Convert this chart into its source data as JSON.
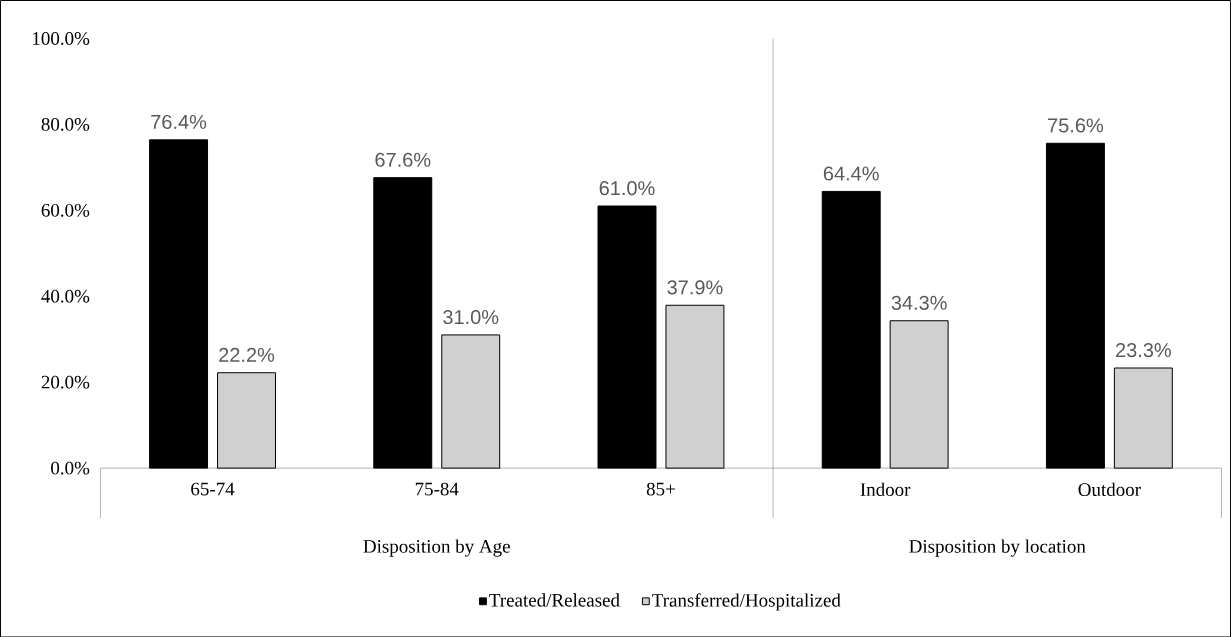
{
  "chart_data": {
    "type": "bar",
    "categories": [
      "65-74",
      "75-84",
      "85+",
      "Indoor",
      "Outdoor"
    ],
    "series": [
      {
        "name": "Treated/Released",
        "color": "#000000",
        "values": [
          76.4,
          67.6,
          61.0,
          64.4,
          75.6
        ],
        "value_labels": [
          "76.4%",
          "67.6%",
          "61.0%",
          "64.4%",
          "75.6%"
        ]
      },
      {
        "name": "Transferred/Hospitalized",
        "color": "#d0d0d0",
        "values": [
          22.2,
          31.0,
          37.9,
          34.3,
          23.3
        ],
        "value_labels": [
          "22.2%",
          "31.0%",
          "37.9%",
          "34.3%",
          "23.3%"
        ]
      }
    ],
    "ylim": [
      0,
      100
    ],
    "yticks": [
      {
        "value": 0,
        "label": "0.0%"
      },
      {
        "value": 20,
        "label": "20.0%"
      },
      {
        "value": 40,
        "label": "40.0%"
      },
      {
        "value": 60,
        "label": "60.0%"
      },
      {
        "value": 80,
        "label": "80.0%"
      },
      {
        "value": 100,
        "label": "100.0%"
      }
    ],
    "annotations": [
      "Disposition by Age",
      "Disposition by location"
    ],
    "grid": false,
    "legend": "bottom"
  }
}
